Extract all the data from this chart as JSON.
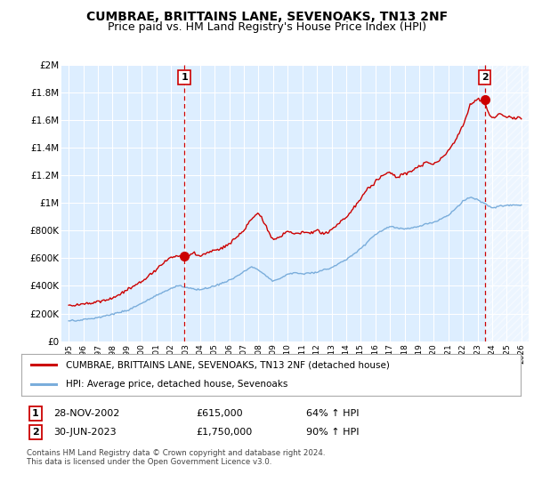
{
  "title": "CUMBRAE, BRITTAINS LANE, SEVENOAKS, TN13 2NF",
  "subtitle": "Price paid vs. HM Land Registry's House Price Index (HPI)",
  "x_start_year": 1995,
  "x_end_year": 2026,
  "ylim": [
    0,
    2000000
  ],
  "yticks": [
    0,
    200000,
    400000,
    600000,
    800000,
    1000000,
    1200000,
    1400000,
    1600000,
    1800000,
    2000000
  ],
  "ytick_labels": [
    "£0",
    "£200K",
    "£400K",
    "£600K",
    "£800K",
    "£1M",
    "£1.2M",
    "£1.4M",
    "£1.6M",
    "£1.8M",
    "£2M"
  ],
  "red_line_color": "#cc0000",
  "blue_line_color": "#7aaddb",
  "marker1_year": 2002.92,
  "marker1_value": 615000,
  "marker2_year": 2023.5,
  "marker2_value": 1750000,
  "legend_red_label": "CUMBRAE, BRITTAINS LANE, SEVENOAKS, TN13 2NF (detached house)",
  "legend_blue_label": "HPI: Average price, detached house, Sevenoaks",
  "footnote": "Contains HM Land Registry data © Crown copyright and database right 2024.\nThis data is licensed under the Open Government Licence v3.0.",
  "background_color": "#ffffff",
  "plot_bg_color": "#ddeeff",
  "grid_color": "#ffffff",
  "title_fontsize": 10,
  "subtitle_fontsize": 9
}
